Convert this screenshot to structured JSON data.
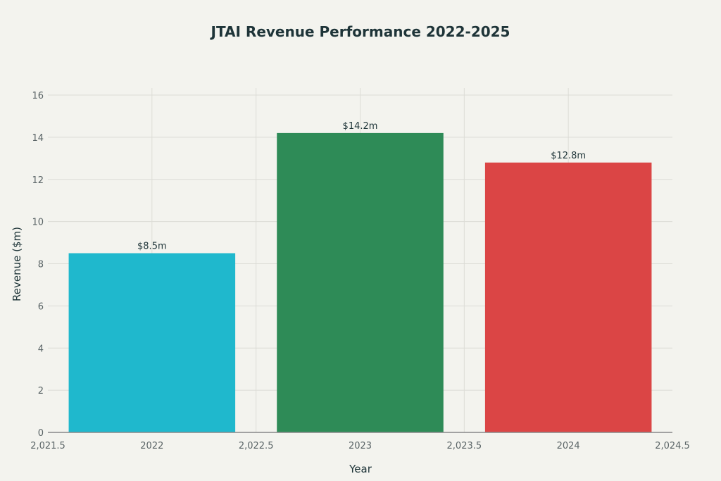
{
  "chart_data": {
    "type": "bar",
    "title": "JTAI Revenue Performance 2022-2025",
    "xlabel": "Year",
    "ylabel": "Revenue ($m)",
    "x": [
      2022,
      2023,
      2024
    ],
    "values": [
      8.5,
      14.2,
      12.8
    ],
    "data_labels": [
      "$8.5m",
      "$14.2m",
      "$12.8m"
    ],
    "colors": [
      "#1fb8cd",
      "#2e8b57",
      "#db4545"
    ],
    "xlim": [
      2021.5,
      2024.5
    ],
    "ylim": [
      0,
      16.5
    ],
    "xticks": [
      2021.5,
      2022,
      2022.5,
      2023,
      2023.5,
      2024,
      2024.5
    ],
    "xtick_labels": [
      "2,021.5",
      "2022",
      "2,022.5",
      "2023",
      "2,023.5",
      "2024",
      "2,024.5"
    ],
    "yticks": [
      0,
      2,
      4,
      6,
      8,
      10,
      12,
      14,
      16
    ],
    "ytick_labels": [
      "0",
      "2",
      "4",
      "6",
      "8",
      "10",
      "12",
      "14",
      "16"
    ],
    "grid": true,
    "legend": "none"
  }
}
